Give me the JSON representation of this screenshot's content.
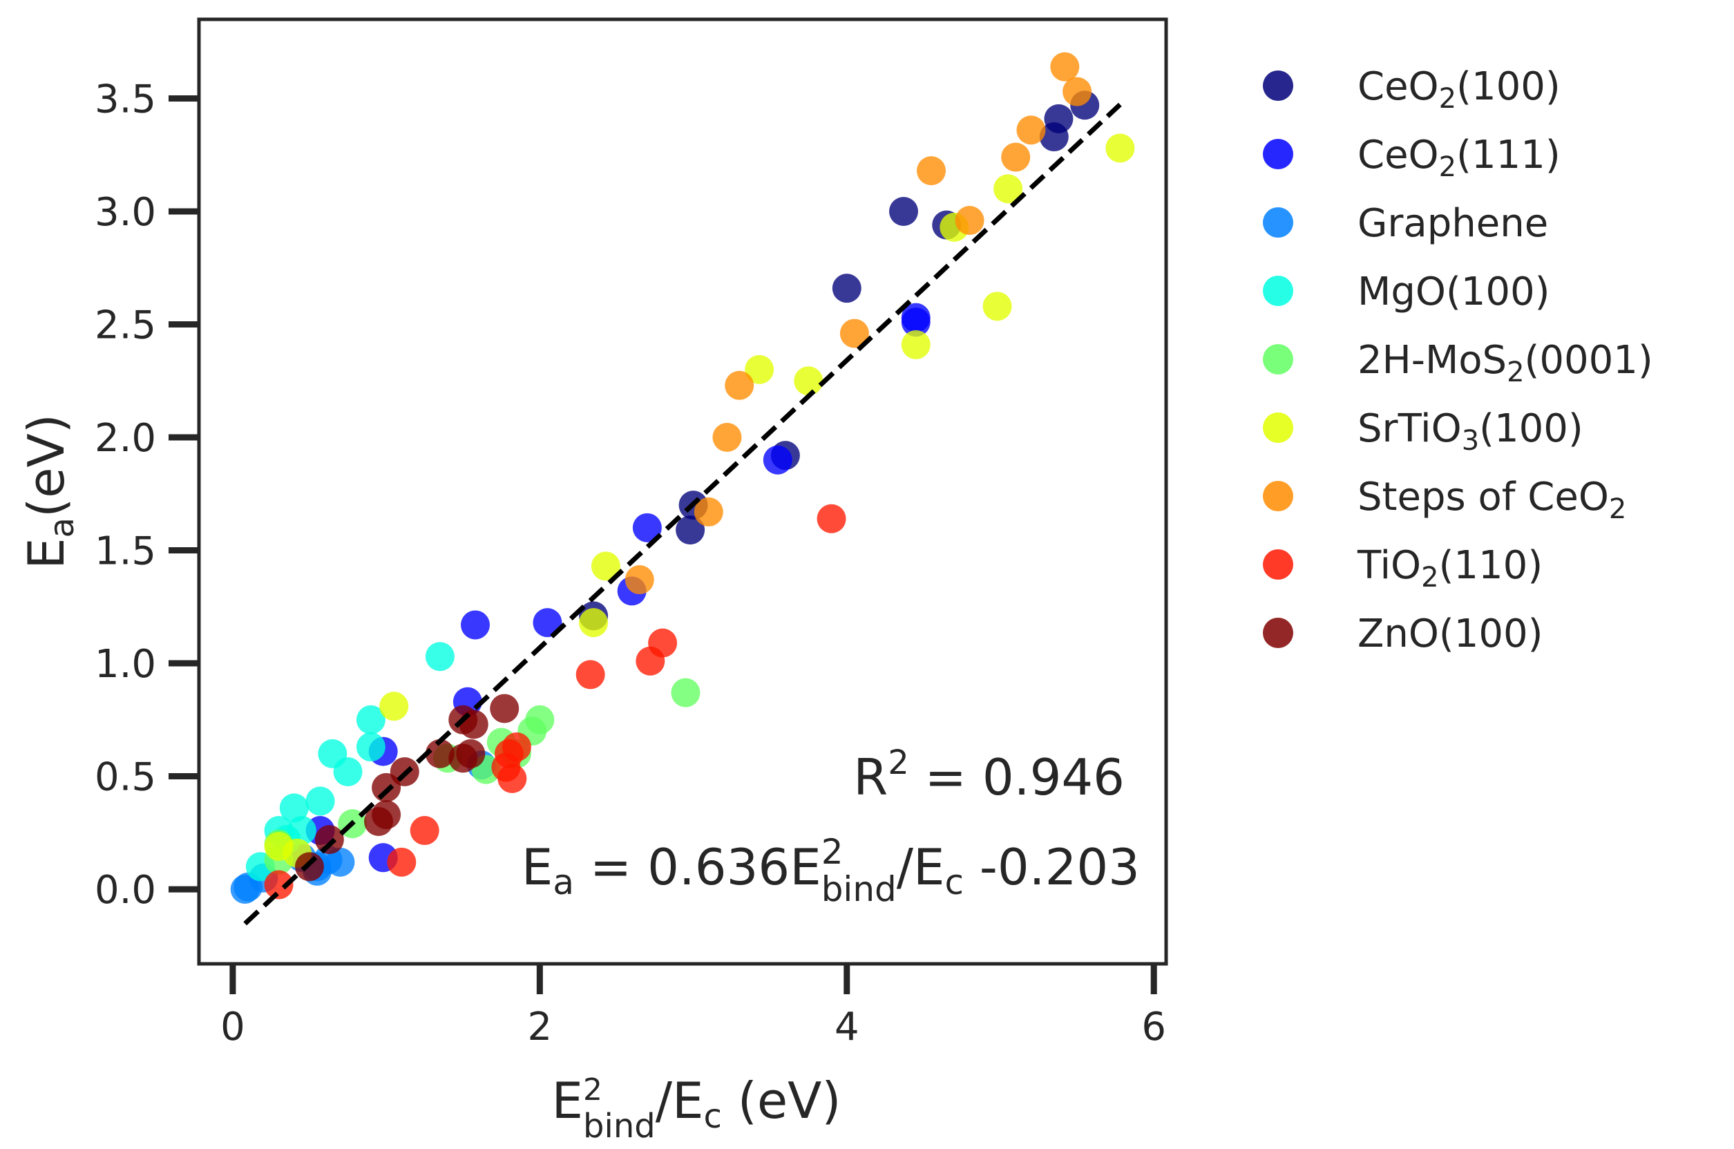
{
  "chart_data": {
    "type": "scatter",
    "xlabel": {
      "base": "E",
      "sup": "2",
      "sub": "bind",
      "rest": "/E",
      "sub2": "c",
      "unit": " (eV)"
    },
    "ylabel": {
      "base": "E",
      "sub": "a",
      "rest": "(eV)"
    },
    "xlim": [
      -0.22,
      6.08
    ],
    "ylim": [
      -0.33,
      3.85
    ],
    "xticks": [
      "0",
      "2",
      "4",
      "6"
    ],
    "xtick_values": [
      0,
      2,
      4,
      6
    ],
    "yticks": [
      "0.0",
      "0.5",
      "1.0",
      "1.5",
      "2.0",
      "2.5",
      "3.0",
      "3.5"
    ],
    "ytick_values": [
      0.0,
      0.5,
      1.0,
      1.5,
      2.0,
      2.5,
      3.0,
      3.5
    ],
    "grid": false,
    "legend_position": "outside-right",
    "fit_line": {
      "slope": 0.636,
      "intercept": -0.203,
      "x_range": [
        0.08,
        5.78
      ],
      "style": "dashed",
      "color": "#000000"
    },
    "annotations": {
      "r2": {
        "base": "R",
        "sup": "2",
        "rest": " = 0.946"
      },
      "equation": {
        "base": "E",
        "sub": "a",
        "mid": " = 0.636E",
        "sup": "2",
        "sub2": "bind",
        "rest": "/E",
        "sub3": "c",
        "tail": " -0.203"
      }
    },
    "series": [
      {
        "label_main": "CeO",
        "label_sub": "2",
        "label_tail": "(100)",
        "color": "#00007a",
        "points": [
          [
            5.55,
            3.47
          ],
          [
            5.38,
            3.41
          ],
          [
            5.35,
            3.33
          ],
          [
            4.37,
            3.0
          ],
          [
            4.65,
            2.94
          ],
          [
            4.0,
            2.66
          ],
          [
            3.0,
            1.7
          ],
          [
            2.98,
            1.59
          ],
          [
            3.6,
            1.92
          ],
          [
            2.35,
            1.21
          ]
        ]
      },
      {
        "label_main": "CeO",
        "label_sub": "2",
        "label_tail": "(111)",
        "color": "#0000ff",
        "points": [
          [
            4.45,
            2.53
          ],
          [
            4.45,
            2.51
          ],
          [
            3.55,
            1.9
          ],
          [
            2.7,
            1.6
          ],
          [
            2.6,
            1.32
          ],
          [
            2.05,
            1.18
          ],
          [
            1.58,
            1.17
          ],
          [
            1.53,
            0.83
          ],
          [
            0.98,
            0.61
          ],
          [
            0.57,
            0.26
          ],
          [
            0.98,
            0.14
          ]
        ]
      },
      {
        "label_main": "Graphene",
        "label_sub": "",
        "label_tail": "",
        "color": "#0080ff",
        "points": [
          [
            0.08,
            0.0
          ],
          [
            0.1,
            0.01
          ],
          [
            0.55,
            0.08
          ],
          [
            0.55,
            0.1
          ],
          [
            0.7,
            0.12
          ],
          [
            0.62,
            0.13
          ],
          [
            0.45,
            0.14
          ],
          [
            0.2,
            0.05
          ],
          [
            1.62,
            0.55
          ]
        ]
      },
      {
        "label_main": "MgO(100)",
        "label_sub": "",
        "label_tail": "",
        "color": "#00ffe0",
        "points": [
          [
            1.35,
            1.03
          ],
          [
            0.9,
            0.75
          ],
          [
            0.65,
            0.6
          ],
          [
            0.9,
            0.63
          ],
          [
            0.75,
            0.52
          ],
          [
            0.4,
            0.36
          ],
          [
            0.57,
            0.39
          ],
          [
            0.3,
            0.26
          ],
          [
            0.35,
            0.22
          ],
          [
            0.18,
            0.1
          ],
          [
            0.45,
            0.26
          ]
        ]
      },
      {
        "label_main": "2H-MoS",
        "label_sub": "2",
        "label_tail": "(0001)",
        "color": "#62ff62",
        "points": [
          [
            2.95,
            0.87
          ],
          [
            2.0,
            0.75
          ],
          [
            1.95,
            0.7
          ],
          [
            1.75,
            0.65
          ],
          [
            1.85,
            0.6
          ],
          [
            1.4,
            0.58
          ],
          [
            1.65,
            0.53
          ],
          [
            0.78,
            0.29
          ],
          [
            0.3,
            0.2
          ],
          [
            0.3,
            0.13
          ]
        ]
      },
      {
        "label_main": "SrTiO",
        "label_sub": "3",
        "label_tail": "(100)",
        "color": "#e2ff00",
        "points": [
          [
            5.78,
            3.28
          ],
          [
            5.05,
            3.1
          ],
          [
            4.98,
            2.58
          ],
          [
            4.7,
            2.93
          ],
          [
            4.45,
            2.41
          ],
          [
            3.43,
            2.3
          ],
          [
            3.75,
            2.25
          ],
          [
            2.43,
            1.43
          ],
          [
            2.35,
            1.18
          ],
          [
            1.05,
            0.81
          ],
          [
            0.42,
            0.16
          ],
          [
            0.3,
            0.19
          ]
        ]
      },
      {
        "label_main": "Steps of CeO",
        "label_sub": "2",
        "label_tail": "",
        "color": "#ff8c00",
        "points": [
          [
            5.42,
            3.64
          ],
          [
            5.5,
            3.53
          ],
          [
            5.2,
            3.36
          ],
          [
            5.1,
            3.24
          ],
          [
            4.55,
            3.18
          ],
          [
            4.8,
            2.96
          ],
          [
            4.05,
            2.46
          ],
          [
            3.3,
            2.23
          ],
          [
            3.22,
            2.0
          ],
          [
            3.1,
            1.67
          ],
          [
            2.65,
            1.37
          ]
        ]
      },
      {
        "label_main": "TiO",
        "label_sub": "2",
        "label_tail": "(110)",
        "color": "#ff1800",
        "points": [
          [
            3.9,
            1.64
          ],
          [
            2.8,
            1.09
          ],
          [
            2.72,
            1.01
          ],
          [
            2.33,
            0.95
          ],
          [
            1.85,
            0.63
          ],
          [
            1.8,
            0.6
          ],
          [
            1.78,
            0.54
          ],
          [
            1.82,
            0.49
          ],
          [
            1.25,
            0.26
          ],
          [
            1.1,
            0.12
          ],
          [
            0.3,
            0.02
          ]
        ]
      },
      {
        "label_main": "ZnO(100)",
        "label_sub": "",
        "label_tail": "",
        "color": "#800000",
        "points": [
          [
            1.77,
            0.8
          ],
          [
            1.5,
            0.75
          ],
          [
            1.57,
            0.73
          ],
          [
            1.55,
            0.6
          ],
          [
            1.5,
            0.58
          ],
          [
            1.35,
            0.6
          ],
          [
            1.12,
            0.52
          ],
          [
            1.0,
            0.45
          ],
          [
            1.0,
            0.33
          ],
          [
            0.95,
            0.3
          ],
          [
            0.63,
            0.22
          ],
          [
            0.5,
            0.1
          ]
        ]
      }
    ]
  }
}
